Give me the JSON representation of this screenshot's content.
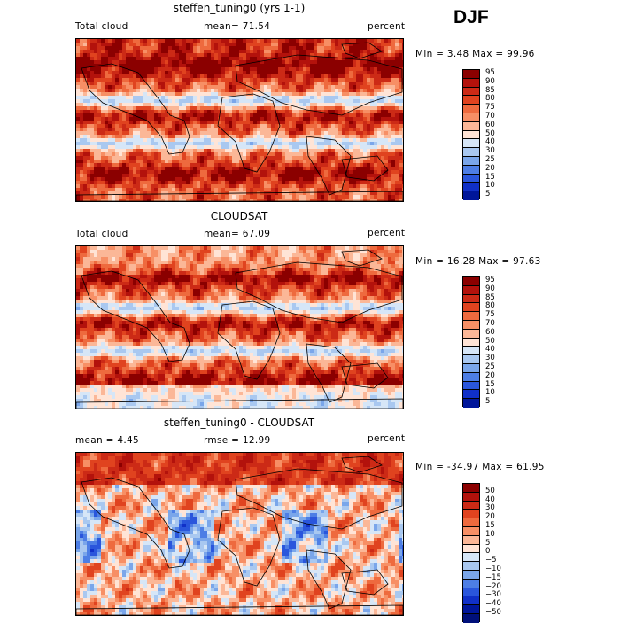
{
  "season": "DJF",
  "panels": [
    {
      "title": "steffen_tuning0 (yrs 1-1)",
      "left_label": "Total cloud",
      "mid_label": "mean=  71.54",
      "right_label": "percent",
      "minmax": "Min =   3.48 Max =  99.96",
      "field": "model"
    },
    {
      "title": "CLOUDSAT",
      "left_label": "Total cloud",
      "mid_label": "mean=  67.09",
      "right_label": "percent",
      "minmax": "Min =  16.28 Max =  97.63",
      "field": "obs"
    },
    {
      "title": "steffen_tuning0 - CLOUDSAT",
      "left_label": "mean =   4.45",
      "mid_label": "rmse =  12.99",
      "right_label": "percent",
      "minmax": "Min = -34.97 Max =  61.95",
      "field": "diff"
    }
  ],
  "chart_data": [
    {
      "type": "heatmap",
      "title": "steffen_tuning0 (yrs 1-1)",
      "variable": "Total cloud",
      "units": "percent",
      "mean": 71.54,
      "min": 3.48,
      "max": 99.96,
      "colorbar_levels": [
        "95",
        "90",
        "85",
        "80",
        "75",
        "70",
        "60",
        "50",
        "40",
        "30",
        "25",
        "20",
        "15",
        "10",
        "5"
      ],
      "colorbar_colors": [
        "#8b0000",
        "#b3120c",
        "#cc2a16",
        "#e0431f",
        "#ee6a3e",
        "#f78f65",
        "#fbb797",
        "#ffe4d6",
        "#d6e6f7",
        "#a9c8f0",
        "#7aa6ea",
        "#4d7ee5",
        "#2a56dc",
        "#1030c8",
        "#00169a"
      ]
    },
    {
      "type": "heatmap",
      "title": "CLOUDSAT",
      "variable": "Total cloud",
      "units": "percent",
      "mean": 67.09,
      "min": 16.28,
      "max": 97.63,
      "colorbar_levels": [
        "95",
        "90",
        "85",
        "80",
        "75",
        "70",
        "60",
        "50",
        "40",
        "30",
        "25",
        "20",
        "15",
        "10",
        "5"
      ],
      "colorbar_colors": [
        "#8b0000",
        "#b3120c",
        "#cc2a16",
        "#e0431f",
        "#ee6a3e",
        "#f78f65",
        "#fbb797",
        "#ffe4d6",
        "#d6e6f7",
        "#a9c8f0",
        "#7aa6ea",
        "#4d7ee5",
        "#2a56dc",
        "#1030c8",
        "#00169a"
      ]
    },
    {
      "type": "heatmap",
      "title": "steffen_tuning0 - CLOUDSAT",
      "units": "percent",
      "mean": 4.45,
      "rmse": 12.99,
      "min": -34.97,
      "max": 61.95,
      "colorbar_levels": [
        "50",
        "40",
        "30",
        "20",
        "15",
        "10",
        "5",
        "0",
        "−5",
        "−10",
        "−15",
        "−20",
        "−30",
        "−40",
        "−50"
      ],
      "colorbar_colors": [
        "#8b0000",
        "#b3120c",
        "#cc2a16",
        "#e0431f",
        "#ee6a3e",
        "#f78f65",
        "#fbb797",
        "#ffe4d6",
        "#d6e6f7",
        "#a9c8f0",
        "#7aa6ea",
        "#4d7ee5",
        "#2a56dc",
        "#1030c8",
        "#00169a",
        "#00107a"
      ]
    }
  ]
}
